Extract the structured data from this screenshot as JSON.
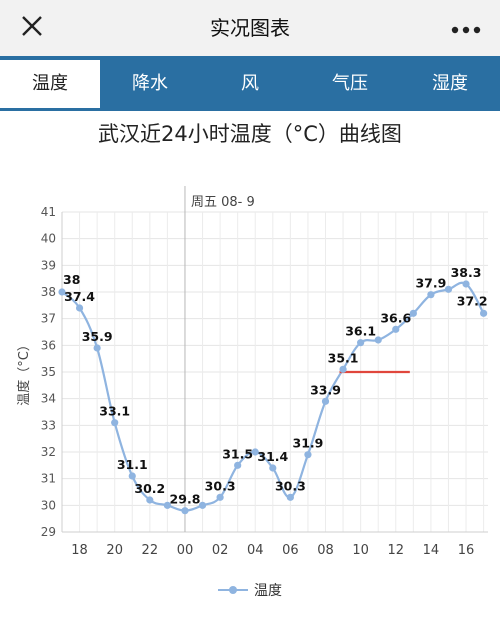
{
  "header": {
    "title": "实况图表",
    "close_icon": "close-icon",
    "more_icon": "more-horizontal-icon"
  },
  "tabs": [
    {
      "label": "温度",
      "active": true
    },
    {
      "label": "降水",
      "active": false
    },
    {
      "label": "风",
      "active": false
    },
    {
      "label": "气压",
      "active": false
    },
    {
      "label": "湿度",
      "active": false
    }
  ],
  "colors": {
    "tab_bar": "#2a6fa2",
    "series": "#8fb4e0",
    "marker_line": "#e0463c"
  },
  "chart_data": {
    "type": "line",
    "title": "武汉近24小时温度（°C）曲线图",
    "ylabel": "温度（°C）",
    "xlabel": "",
    "ylim": [
      29,
      41
    ],
    "yticks": [
      29,
      30,
      31,
      32,
      33,
      34,
      35,
      36,
      37,
      38,
      39,
      40,
      41
    ],
    "xtick_labels": [
      "18",
      "20",
      "22",
      "00",
      "02",
      "04",
      "06",
      "08",
      "10",
      "12",
      "14",
      "16"
    ],
    "day_marker_label": "周五 08- 9",
    "legend": "温度",
    "series": [
      {
        "name": "温度",
        "x": [
          17,
          18,
          19,
          20,
          21,
          22,
          23,
          24,
          25,
          26,
          27,
          28,
          29,
          30,
          31,
          32,
          33,
          34,
          35,
          36,
          37,
          38,
          39,
          40,
          41
        ],
        "values": [
          38,
          37.4,
          35.9,
          33.1,
          31.1,
          30.2,
          30,
          29.8,
          30,
          30.3,
          31.5,
          32,
          31.4,
          30.3,
          31.9,
          33.9,
          35.1,
          36.1,
          36.2,
          36.6,
          37.2,
          37.9,
          38.1,
          38.3,
          37.2
        ],
        "labels": [
          "38",
          "37.4",
          "35.9",
          "33.1",
          "31.1",
          "30.2",
          "",
          "29.8",
          "",
          "30.3",
          "31.5",
          "",
          "31.4",
          "30.3",
          "31.9",
          "33.9",
          "35.1",
          "36.1",
          "",
          "36.6",
          "",
          "37.9",
          "",
          "38.3",
          "37.2"
        ]
      }
    ],
    "reference_line": {
      "y": 35,
      "x_start": 32.8,
      "x_end": 36.8
    }
  }
}
